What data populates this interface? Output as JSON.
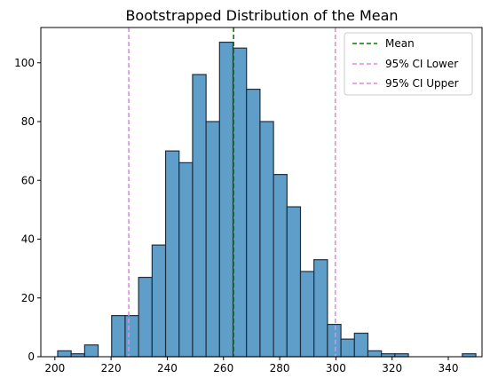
{
  "chart_data": {
    "type": "bar",
    "title": "Bootstrapped Distribution of the Mean",
    "xlabel": "",
    "ylabel": "",
    "xlim": [
      195,
      352
    ],
    "ylim": [
      0,
      112
    ],
    "xticks": [
      200,
      220,
      240,
      260,
      280,
      300,
      320,
      340
    ],
    "yticks": [
      0,
      20,
      40,
      60,
      80,
      100
    ],
    "bins": [
      {
        "x0": 201.0,
        "x1": 205.8,
        "count": 2
      },
      {
        "x0": 205.8,
        "x1": 210.6,
        "count": 1
      },
      {
        "x0": 210.6,
        "x1": 215.4,
        "count": 4
      },
      {
        "x0": 215.4,
        "x1": 220.2,
        "count": 0
      },
      {
        "x0": 220.2,
        "x1": 225.0,
        "count": 14
      },
      {
        "x0": 225.0,
        "x1": 229.8,
        "count": 14
      },
      {
        "x0": 229.8,
        "x1": 234.6,
        "count": 27
      },
      {
        "x0": 234.6,
        "x1": 239.4,
        "count": 38
      },
      {
        "x0": 239.4,
        "x1": 244.2,
        "count": 70
      },
      {
        "x0": 244.2,
        "x1": 249.0,
        "count": 66
      },
      {
        "x0": 249.0,
        "x1": 253.8,
        "count": 96
      },
      {
        "x0": 253.8,
        "x1": 258.6,
        "count": 80
      },
      {
        "x0": 258.6,
        "x1": 263.4,
        "count": 107
      },
      {
        "x0": 263.4,
        "x1": 268.2,
        "count": 105
      },
      {
        "x0": 268.2,
        "x1": 273.0,
        "count": 91
      },
      {
        "x0": 273.0,
        "x1": 277.8,
        "count": 80
      },
      {
        "x0": 277.8,
        "x1": 282.6,
        "count": 62
      },
      {
        "x0": 282.6,
        "x1": 287.4,
        "count": 51
      },
      {
        "x0": 287.4,
        "x1": 292.2,
        "count": 29
      },
      {
        "x0": 292.2,
        "x1": 297.0,
        "count": 33
      },
      {
        "x0": 297.0,
        "x1": 301.8,
        "count": 11
      },
      {
        "x0": 301.8,
        "x1": 306.6,
        "count": 6
      },
      {
        "x0": 306.6,
        "x1": 311.4,
        "count": 8
      },
      {
        "x0": 311.4,
        "x1": 316.2,
        "count": 2
      },
      {
        "x0": 316.2,
        "x1": 321.0,
        "count": 1
      },
      {
        "x0": 321.0,
        "x1": 325.8,
        "count": 1
      },
      {
        "x0": 325.8,
        "x1": 330.6,
        "count": 0
      },
      {
        "x0": 330.6,
        "x1": 335.4,
        "count": 0
      },
      {
        "x0": 335.4,
        "x1": 340.2,
        "count": 0
      },
      {
        "x0": 340.2,
        "x1": 345.0,
        "count": 0
      },
      {
        "x0": 345.0,
        "x1": 349.8,
        "count": 1
      }
    ],
    "bar_color": "#5f9ec9",
    "bar_edge_color": "#1f2f3f",
    "vlines": [
      {
        "name": "Mean",
        "x": 263.6,
        "color": "#008000"
      },
      {
        "name": "95% CI Lower",
        "x": 226.3,
        "color": "#ee82ee"
      },
      {
        "name": "95% CI Upper",
        "x": 299.8,
        "color": "#ee82ee"
      }
    ],
    "legend": {
      "placement": "top-right",
      "entries": [
        "Mean",
        "95% CI Lower",
        "95% CI Upper"
      ]
    },
    "grid": false
  }
}
